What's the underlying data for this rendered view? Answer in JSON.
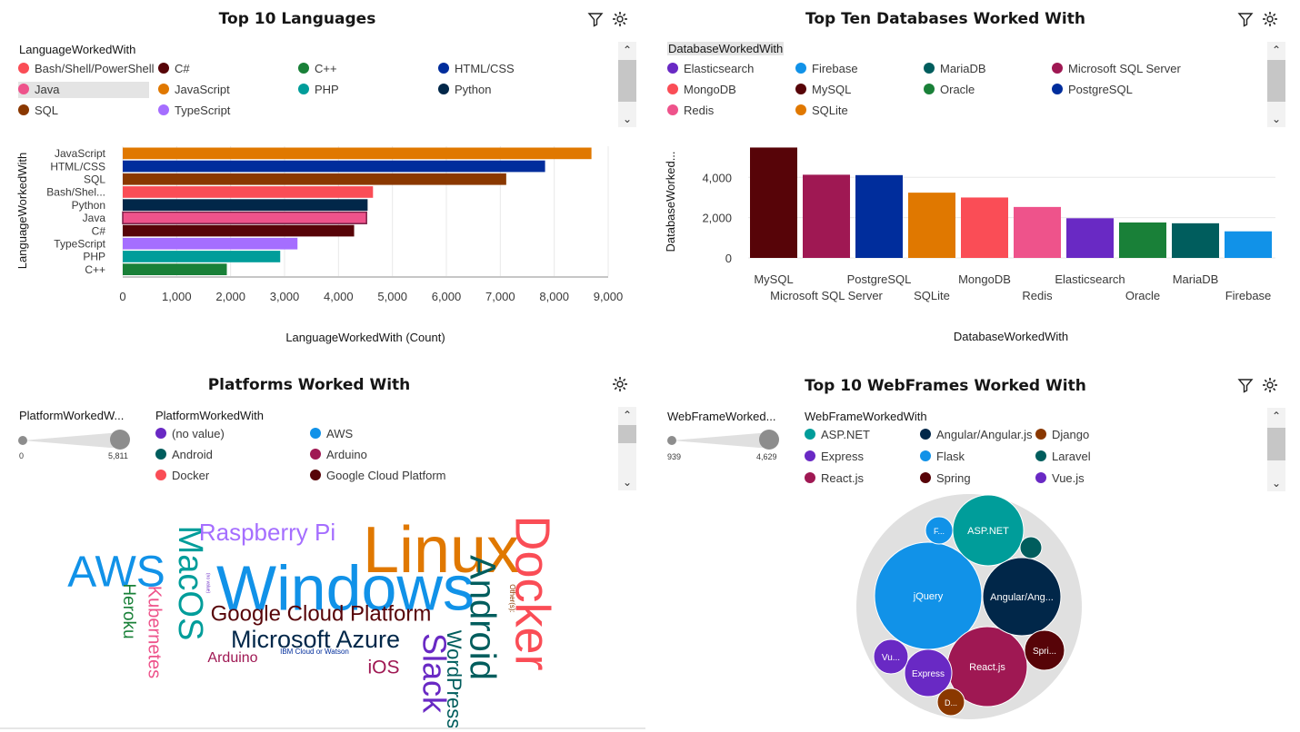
{
  "icons": {
    "filter": "filter-icon",
    "settings": "settings-icon"
  },
  "languages_panel": {
    "title": "Top 10 Languages",
    "legend_title": "LanguageWorkedWith",
    "legend": [
      {
        "label": "Bash/Shell/PowerShell",
        "color": "#fa4d56"
      },
      {
        "label": "C#",
        "color": "#570408"
      },
      {
        "label": "C++",
        "color": "#198038"
      },
      {
        "label": "HTML/CSS",
        "color": "#002d9c"
      },
      {
        "label": "Java",
        "color": "#ee538b",
        "selected": true
      },
      {
        "label": "JavaScript",
        "color": "#e07800"
      },
      {
        "label": "PHP",
        "color": "#009d9a"
      },
      {
        "label": "Python",
        "color": "#012749"
      },
      {
        "label": "SQL",
        "color": "#8a3800"
      },
      {
        "label": "TypeScript",
        "color": "#a56eff"
      }
    ],
    "chart_data": {
      "type": "bar",
      "orientation": "horizontal",
      "categories": [
        "JavaScript",
        "HTML/CSS",
        "SQL",
        "Bash/Shel...",
        "Python",
        "Java",
        "C#",
        "TypeScript",
        "PHP",
        "C++"
      ],
      "values": [
        8690,
        7830,
        7110,
        4640,
        4540,
        4520,
        4290,
        3240,
        2920,
        1930
      ],
      "colors": [
        "#e07800",
        "#002d9c",
        "#8a3800",
        "#fa4d56",
        "#012749",
        "#ee538b",
        "#570408",
        "#a56eff",
        "#009d9a",
        "#198038"
      ],
      "xlim": [
        0,
        9000
      ],
      "xticks": [
        "0",
        "1,000",
        "2,000",
        "3,000",
        "4,000",
        "5,000",
        "6,000",
        "7,000",
        "8,000",
        "9,000"
      ],
      "xlabel": "LanguageWorkedWith (Count)",
      "ylabel": "LanguageWorkedWith"
    }
  },
  "databases_panel": {
    "title": "Top Ten Databases Worked With",
    "legend_title": "DatabaseWorkedWith",
    "legend": [
      {
        "label": "Elasticsearch",
        "color": "#6929c4"
      },
      {
        "label": "Firebase",
        "color": "#1192e8"
      },
      {
        "label": "MariaDB",
        "color": "#005d5d"
      },
      {
        "label": "Microsoft SQL Server",
        "color": "#9f1853"
      },
      {
        "label": "MongoDB",
        "color": "#fa4d56"
      },
      {
        "label": "MySQL",
        "color": "#570408"
      },
      {
        "label": "Oracle",
        "color": "#198038"
      },
      {
        "label": "PostgreSQL",
        "color": "#002d9c"
      },
      {
        "label": "Redis",
        "color": "#ee538b"
      },
      {
        "label": "SQLite",
        "color": "#e07800"
      }
    ],
    "chart_data": {
      "type": "bar",
      "categories": [
        "MySQL",
        "Microsoft SQL Server",
        "PostgreSQL",
        "SQLite",
        "MongoDB",
        "Redis",
        "Elasticsearch",
        "Oracle",
        "MariaDB",
        "Firebase"
      ],
      "values": [
        5480,
        4130,
        4110,
        3240,
        3000,
        2530,
        1970,
        1760,
        1720,
        1320
      ],
      "colors": [
        "#570408",
        "#9f1853",
        "#002d9c",
        "#e07800",
        "#fa4d56",
        "#ee538b",
        "#6929c4",
        "#198038",
        "#005d5d",
        "#1192e8"
      ],
      "ylim": [
        0,
        5500
      ],
      "yticks": [
        {
          "v": 0,
          "t": "0"
        },
        {
          "v": 2000,
          "t": "2,000"
        },
        {
          "v": 4000,
          "t": "4,000"
        }
      ],
      "xlabel": "DatabaseWorkedWith",
      "ylabel": "DatabaseWorked..."
    }
  },
  "platforms_panel": {
    "title": "Platforms Worked With",
    "slider_title": "PlatformWorkedW...",
    "slider_min": "0",
    "slider_max": "5,811",
    "legend_title": "PlatformWorkedWith",
    "legend": [
      {
        "label": "(no value)",
        "color": "#6929c4"
      },
      {
        "label": "AWS",
        "color": "#1192e8"
      },
      {
        "label": "Android",
        "color": "#005d5d"
      },
      {
        "label": "Arduino",
        "color": "#9f1853"
      },
      {
        "label": "Docker",
        "color": "#fa4d56"
      },
      {
        "label": "Google Cloud Platform",
        "color": "#570408"
      }
    ],
    "chart_data": {
      "type": "wordcloud",
      "words": [
        {
          "text": "Windows",
          "color": "#1192e8",
          "weight": 5811
        },
        {
          "text": "Linux",
          "color": "#e07800",
          "weight": 5000
        },
        {
          "text": "Docker",
          "color": "#fa4d56",
          "weight": 3300
        },
        {
          "text": "AWS",
          "color": "#1192e8",
          "weight": 2600
        },
        {
          "text": "Android",
          "color": "#005d5d",
          "weight": 2400
        },
        {
          "text": "MacOS",
          "color": "#009d9a",
          "weight": 2300
        },
        {
          "text": "Slack",
          "color": "#6929c4",
          "weight": 2000
        },
        {
          "text": "Raspberry Pi",
          "color": "#a56eff",
          "weight": 1700
        },
        {
          "text": "Google Cloud Platform",
          "color": "#570408",
          "weight": 1600
        },
        {
          "text": "Microsoft Azure",
          "color": "#012749",
          "weight": 1600
        },
        {
          "text": "WordPress",
          "color": "#005d5d",
          "weight": 1500
        },
        {
          "text": "Kubernetes",
          "color": "#ee538b",
          "weight": 1200
        },
        {
          "text": "Heroku",
          "color": "#198038",
          "weight": 1200
        },
        {
          "text": "iOS",
          "color": "#9f1853",
          "weight": 1200
        },
        {
          "text": "Arduino",
          "color": "#9f1853",
          "weight": 1100
        },
        {
          "text": "IBM Cloud or Watson",
          "color": "#002d9c",
          "weight": 300
        },
        {
          "text": "Other(s):",
          "color": "#8a3800",
          "weight": 250
        },
        {
          "text": "(no value)",
          "color": "#6929c4",
          "weight": 100
        }
      ]
    }
  },
  "webframes_panel": {
    "title": "Top 10 WebFrames Worked With",
    "slider_title": "WebFrameWorked...",
    "slider_min": "939",
    "slider_max": "4,629",
    "legend_title": "WebFrameWorkedWith",
    "legend": [
      {
        "label": "ASP.NET",
        "color": "#009d9a"
      },
      {
        "label": "Angular/Angular.js",
        "color": "#012749"
      },
      {
        "label": "Django",
        "color": "#8a3800"
      },
      {
        "label": "Express",
        "color": "#6929c4"
      },
      {
        "label": "Flask",
        "color": "#1192e8"
      },
      {
        "label": "Laravel",
        "color": "#005d5d"
      },
      {
        "label": "React.js",
        "color": "#9f1853"
      },
      {
        "label": "Spring",
        "color": "#570408"
      },
      {
        "label": "Vue.js",
        "color": "#6929c4"
      }
    ],
    "chart_data": {
      "type": "bubble",
      "bubbles": [
        {
          "label": "jQuery",
          "color": "#1192e8"
        },
        {
          "label": "React.js",
          "color": "#9f1853"
        },
        {
          "label": "Angular/Ang...",
          "color": "#012749"
        },
        {
          "label": "ASP.NET",
          "color": "#009d9a"
        },
        {
          "label": "Express",
          "color": "#6929c4"
        },
        {
          "label": "Spri...",
          "color": "#570408"
        },
        {
          "label": "Vu...",
          "color": "#6929c4"
        },
        {
          "label": "F...",
          "color": "#1192e8"
        },
        {
          "label": "D...",
          "color": "#8a3800"
        },
        {
          "label": "",
          "color": "#005d5d"
        }
      ]
    }
  }
}
